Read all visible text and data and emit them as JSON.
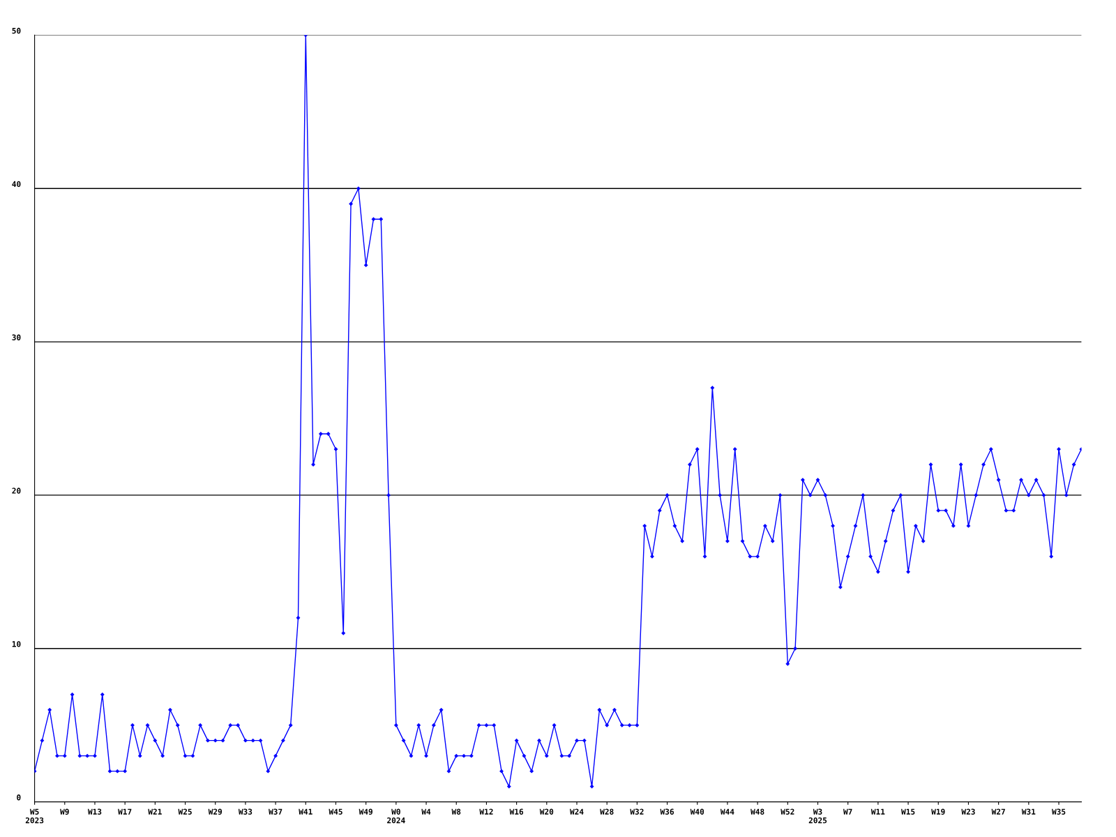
{
  "chart_data": {
    "type": "line",
    "categories": [
      "W5\n2023",
      null,
      null,
      null,
      "W9",
      null,
      null,
      null,
      "W13",
      null,
      null,
      null,
      "W17",
      null,
      null,
      null,
      "W21",
      null,
      null,
      null,
      "W25",
      null,
      null,
      null,
      "W29",
      null,
      null,
      null,
      "W33",
      null,
      null,
      null,
      "W37",
      null,
      null,
      null,
      "W41",
      null,
      null,
      null,
      "W45",
      null,
      null,
      null,
      "W49",
      null,
      null,
      null,
      "W0\n2024",
      null,
      null,
      null,
      "W4",
      null,
      null,
      null,
      "W8",
      null,
      null,
      null,
      "W12",
      null,
      null,
      null,
      "W16",
      null,
      null,
      null,
      "W20",
      null,
      null,
      null,
      "W24",
      null,
      null,
      null,
      "W28",
      null,
      null,
      null,
      "W32",
      null,
      null,
      null,
      "W36",
      null,
      null,
      null,
      "W40",
      null,
      null,
      null,
      "W44",
      null,
      null,
      null,
      "W48",
      null,
      null,
      null,
      "W52",
      null,
      null,
      null,
      "W3\n2025",
      null,
      null,
      null,
      "W7",
      null,
      null,
      null,
      "W11",
      null,
      null,
      null,
      "W15",
      null,
      null,
      null,
      "W19",
      null,
      null,
      null,
      "W23",
      null,
      null,
      null,
      "W27",
      null,
      null,
      null,
      "W31",
      null,
      null,
      null,
      "W35",
      null,
      null,
      null
    ],
    "series": [
      {
        "color": "#0000ff",
        "values": [
          2,
          4,
          6,
          3,
          3,
          7,
          3,
          3,
          3,
          7,
          2,
          2,
          2,
          5,
          3,
          5,
          4,
          3,
          6,
          5,
          3,
          3,
          5,
          4,
          4,
          4,
          5,
          5,
          4,
          4,
          4,
          2,
          3,
          4,
          5,
          12,
          50,
          22,
          24,
          24,
          23,
          11,
          39,
          40,
          35,
          38,
          38,
          20,
          5,
          4,
          3,
          5,
          3,
          5,
          6,
          2,
          3,
          3,
          3,
          5,
          5,
          5,
          2,
          1,
          4,
          3,
          2,
          4,
          3,
          5,
          3,
          3,
          4,
          4,
          1,
          6,
          5,
          6,
          5,
          5,
          5,
          18,
          16,
          19,
          20,
          18,
          17,
          22,
          23,
          16,
          27,
          20,
          17,
          23,
          17,
          16,
          16,
          18,
          17,
          20,
          9,
          10,
          21,
          20,
          21,
          20,
          18,
          14,
          16,
          18,
          20,
          16,
          15,
          17,
          19,
          20,
          15,
          18,
          17,
          22,
          19,
          19,
          18,
          22,
          18,
          20,
          22,
          23,
          21,
          19,
          19,
          21,
          20,
          21,
          20,
          16,
          23,
          20,
          22,
          23
        ]
      }
    ],
    "ylim": [
      0,
      50
    ],
    "yticks": [
      0,
      10,
      20,
      30,
      40,
      50
    ],
    "grid": "y",
    "marker": "diamond",
    "line_style": "solid",
    "legend": false
  }
}
